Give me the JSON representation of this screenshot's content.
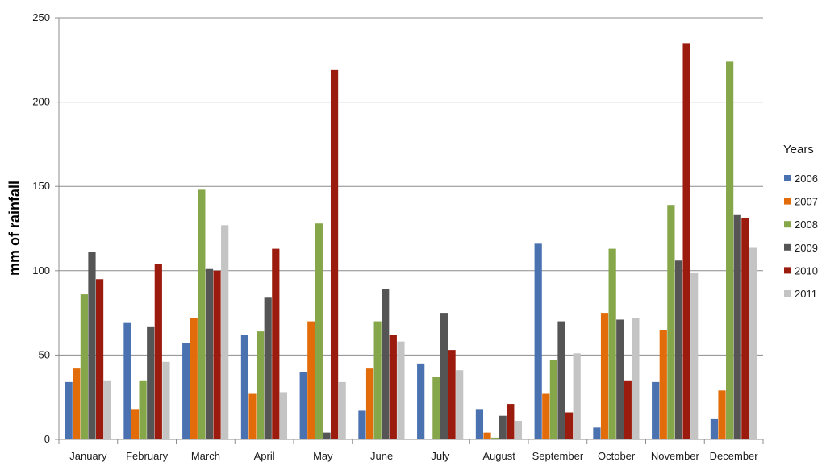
{
  "chart_data": {
    "type": "bar",
    "title": "",
    "xlabel": "",
    "ylabel": "mm of rainfall",
    "ylim": [
      0,
      250
    ],
    "yticks": [
      0,
      50,
      100,
      150,
      200,
      250
    ],
    "grid": true,
    "legend_title": "Years",
    "legend_position": "right",
    "categories": [
      "January",
      "February",
      "March",
      "April",
      "May",
      "June",
      "July",
      "August",
      "September",
      "October",
      "November",
      "December"
    ],
    "series": [
      {
        "name": "2006",
        "color": "#4a72b0",
        "values": [
          34,
          69,
          57,
          62,
          40,
          17,
          45,
          18,
          116,
          7,
          34,
          12
        ]
      },
      {
        "name": "2007",
        "color": "#e36c0a",
        "values": [
          42,
          18,
          72,
          27,
          70,
          42,
          0,
          4,
          27,
          75,
          65,
          29
        ]
      },
      {
        "name": "2008",
        "color": "#86a64a",
        "values": [
          86,
          35,
          148,
          64,
          128,
          70,
          37,
          1,
          47,
          113,
          139,
          224
        ]
      },
      {
        "name": "2009",
        "color": "#555555",
        "values": [
          111,
          67,
          101,
          84,
          4,
          89,
          75,
          14,
          70,
          71,
          106,
          133
        ]
      },
      {
        "name": "2010",
        "color": "#9b1c0e",
        "values": [
          95,
          104,
          100,
          113,
          219,
          62,
          53,
          21,
          16,
          35,
          235,
          131
        ]
      },
      {
        "name": "2011",
        "color": "#c4c4c4",
        "values": [
          35,
          46,
          127,
          28,
          34,
          58,
          41,
          11,
          51,
          72,
          99,
          114
        ]
      }
    ]
  }
}
